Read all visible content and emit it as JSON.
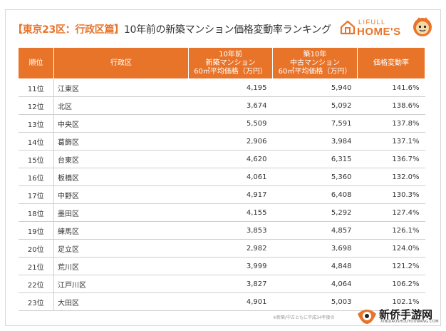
{
  "header": {
    "title_emph": "【東京23区：行政区篇】",
    "title_rest": "10年前の新築マンション価格変動率ランキング"
  },
  "logo": {
    "top": "LIFULL",
    "main": "HOME'S",
    "brand_color": "#e8742a"
  },
  "table": {
    "columns": [
      "順位",
      "行政区",
      "10年前\n新築マンション\n60㎡平均価格（万円）",
      "築10年\n中古マンション\n60㎡平均価格（万円）",
      "価格変動率"
    ],
    "rows": [
      {
        "rank": "11位",
        "ward": "江東区",
        "new": "4,195",
        "used": "5,940",
        "rate": "141.6%"
      },
      {
        "rank": "12位",
        "ward": "北区",
        "new": "3,674",
        "used": "5,092",
        "rate": "138.6%"
      },
      {
        "rank": "13位",
        "ward": "中央区",
        "new": "5,509",
        "used": "7,591",
        "rate": "137.8%"
      },
      {
        "rank": "14位",
        "ward": "葛飾区",
        "new": "2,906",
        "used": "3,984",
        "rate": "137.1%"
      },
      {
        "rank": "15位",
        "ward": "台東区",
        "new": "4,620",
        "used": "6,315",
        "rate": "136.7%"
      },
      {
        "rank": "16位",
        "ward": "板橋区",
        "new": "4,061",
        "used": "5,360",
        "rate": "132.0%"
      },
      {
        "rank": "17位",
        "ward": "中野区",
        "new": "4,917",
        "used": "6,408",
        "rate": "130.3%"
      },
      {
        "rank": "18位",
        "ward": "墨田区",
        "new": "4,155",
        "used": "5,292",
        "rate": "127.4%"
      },
      {
        "rank": "19位",
        "ward": "練馬区",
        "new": "3,853",
        "used": "4,857",
        "rate": "126.1%"
      },
      {
        "rank": "20位",
        "ward": "足立区",
        "new": "2,982",
        "used": "3,698",
        "rate": "124.0%"
      },
      {
        "rank": "21位",
        "ward": "荒川区",
        "new": "3,999",
        "used": "4,848",
        "rate": "121.2%"
      },
      {
        "rank": "22位",
        "ward": "江戸川区",
        "new": "3,827",
        "used": "4,064",
        "rate": "106.2%"
      },
      {
        "rank": "23位",
        "ward": "大田区",
        "new": "4,901",
        "used": "5,003",
        "rate": "102.1%"
      }
    ]
  },
  "footnote": "※新築/中古ともに平成34年度の",
  "watermark": {
    "text": "新侨手游网",
    "sub": "XINQIAOSHOUYOUWANG.COM"
  }
}
